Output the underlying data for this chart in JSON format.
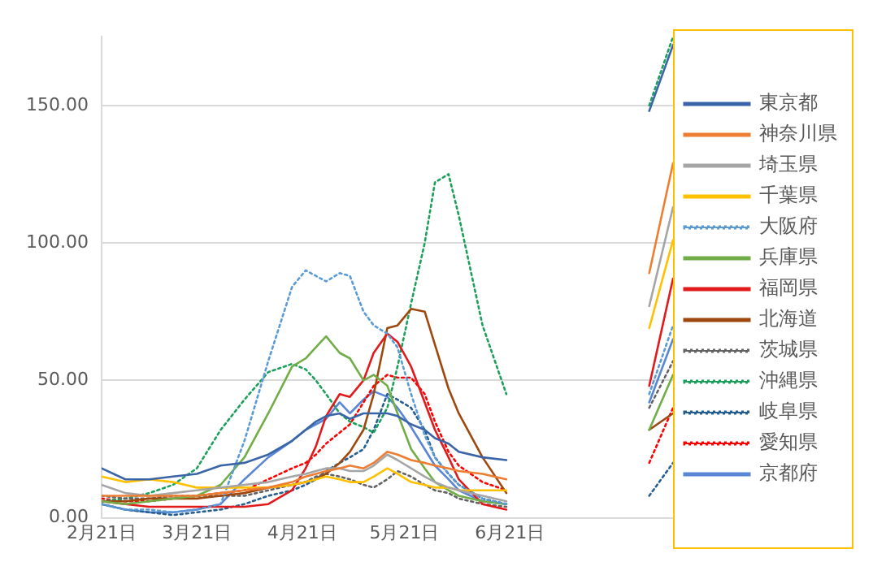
{
  "chart_data": {
    "type": "line",
    "x": [
      "--02-21",
      "--02-28",
      "--03-07",
      "--03-14",
      "--03-21",
      "--03-28",
      "--04-04",
      "--04-11",
      "--04-18",
      "--04-22",
      "--04-25",
      "--04-28",
      "--05-02",
      "--05-05",
      "--05-09",
      "--05-12",
      "--05-16",
      "--05-19",
      "--05-23",
      "--05-27",
      "--05-30",
      "--06-03",
      "--06-06",
      "--06-13",
      "--06-20",
      "--07-11",
      "--08-01",
      "--08-08"
    ],
    "xlim": [
      "--02-21",
      "--08-08"
    ],
    "xticks": [
      {
        "value": "--02-21",
        "label": "2月21日"
      },
      {
        "value": "--03-21",
        "label": "3月21日"
      },
      {
        "value": "--04-21",
        "label": "4月21日"
      },
      {
        "value": "--05-21",
        "label": "5月21日"
      },
      {
        "value": "--06-21",
        "label": "6月21日"
      }
    ],
    "ylim": [
      0,
      175
    ],
    "yticks": [
      {
        "value": 0,
        "label": "0.00"
      },
      {
        "value": 50,
        "label": "50.00"
      },
      {
        "value": 100,
        "label": "100.00"
      },
      {
        "value": 150,
        "label": "150.00"
      }
    ],
    "grid": "y",
    "legend": "right",
    "marker": "none",
    "series": [
      {
        "name": "東京都",
        "color": "#3a64a8",
        "line_style": "solid",
        "values": [
          18,
          14,
          14,
          15,
          16,
          19,
          20,
          23,
          28,
          32,
          35,
          37,
          38,
          36,
          38,
          38,
          38,
          37,
          34,
          32,
          29,
          27,
          24,
          22,
          21,
          null,
          148,
          172
        ]
      },
      {
        "name": "神奈川県",
        "color": "#ed7d31",
        "line_style": "solid",
        "values": [
          8,
          8,
          8,
          8,
          8,
          9,
          10,
          11,
          13,
          15,
          16,
          17,
          18,
          19,
          18,
          20,
          24,
          23,
          21,
          20,
          19,
          18,
          17,
          16,
          14,
          null,
          89,
          129
        ]
      },
      {
        "name": "埼玉県",
        "color": "#a5a5a5",
        "line_style": "solid",
        "values": [
          12,
          9,
          8,
          9,
          10,
          11,
          12,
          13,
          15,
          16,
          17,
          18,
          18,
          17,
          17,
          19,
          23,
          21,
          18,
          15,
          13,
          11,
          10,
          8,
          6,
          null,
          77,
          113
        ]
      },
      {
        "name": "千葉県",
        "color": "#ffc000",
        "line_style": "solid",
        "values": [
          15,
          13,
          14,
          13,
          11,
          11,
          11,
          11,
          12,
          13,
          14,
          15,
          14,
          13,
          13,
          15,
          18,
          16,
          13,
          12,
          11,
          11,
          10,
          10,
          10,
          null,
          69,
          101
        ]
      },
      {
        "name": "大阪府",
        "color": "#5b9bd5",
        "line_style": "dotted",
        "values": [
          5,
          3,
          3,
          2,
          3,
          5,
          28,
          57,
          84,
          90,
          88,
          86,
          89,
          88,
          75,
          70,
          67,
          62,
          45,
          30,
          22,
          16,
          12,
          7,
          5,
          null,
          45,
          70
        ]
      },
      {
        "name": "兵庫県",
        "color": "#70ad47",
        "line_style": "solid",
        "values": [
          6,
          5,
          6,
          7,
          8,
          12,
          22,
          38,
          55,
          58,
          62,
          66,
          60,
          58,
          50,
          52,
          48,
          38,
          25,
          18,
          13,
          10,
          8,
          6,
          5,
          null,
          32,
          52
        ]
      },
      {
        "name": "福岡県",
        "color": "#e31a1c",
        "line_style": "solid",
        "values": [
          6,
          5,
          4,
          4,
          4,
          4,
          4,
          5,
          10,
          18,
          26,
          37,
          45,
          44,
          50,
          60,
          67,
          64,
          55,
          42,
          32,
          22,
          14,
          5,
          3,
          null,
          48,
          87
        ]
      },
      {
        "name": "北海道",
        "color": "#9e480e",
        "line_style": "solid",
        "values": [
          6,
          6,
          7,
          7,
          7,
          8,
          9,
          11,
          12,
          13,
          14,
          16,
          20,
          24,
          32,
          45,
          69,
          70,
          76,
          75,
          63,
          47,
          38,
          22,
          9,
          null,
          32,
          38
        ]
      },
      {
        "name": "茨城県",
        "color": "#636363",
        "line_style": "dotted",
        "values": [
          8,
          7,
          7,
          8,
          8,
          8,
          8,
          10,
          12,
          13,
          15,
          16,
          15,
          14,
          12,
          11,
          14,
          17,
          15,
          12,
          10,
          9,
          7,
          5,
          4,
          null,
          40,
          57
        ]
      },
      {
        "name": "沖縄県",
        "color": "#1aa05a",
        "line_style": "dotted",
        "values": [
          6,
          7,
          9,
          12,
          18,
          32,
          43,
          53,
          56,
          54,
          50,
          45,
          38,
          35,
          33,
          31,
          40,
          55,
          78,
          100,
          122,
          125,
          110,
          70,
          45,
          null,
          150,
          175
        ]
      },
      {
        "name": "岐阜県",
        "color": "#255e91",
        "line_style": "dotted",
        "values": [
          5,
          3,
          2,
          1,
          2,
          3,
          5,
          8,
          10,
          12,
          14,
          17,
          20,
          22,
          25,
          32,
          45,
          43,
          40,
          32,
          22,
          16,
          12,
          7,
          5,
          null,
          8,
          20
        ]
      },
      {
        "name": "愛知県",
        "color": "#ff0000",
        "line_style": "dotted",
        "values": [
          7,
          6,
          6,
          7,
          8,
          9,
          10,
          14,
          18,
          20,
          23,
          27,
          31,
          34,
          42,
          48,
          52,
          51,
          51,
          45,
          35,
          24,
          19,
          13,
          10,
          null,
          20,
          40
        ]
      },
      {
        "name": "京都府",
        "color": "#5a86d6",
        "line_style": "solid",
        "values": [
          5,
          3,
          2,
          2,
          3,
          5,
          14,
          22,
          28,
          32,
          34,
          36,
          42,
          38,
          43,
          46,
          44,
          40,
          33,
          25,
          19,
          14,
          10,
          6,
          5,
          null,
          42,
          65
        ]
      }
    ]
  }
}
